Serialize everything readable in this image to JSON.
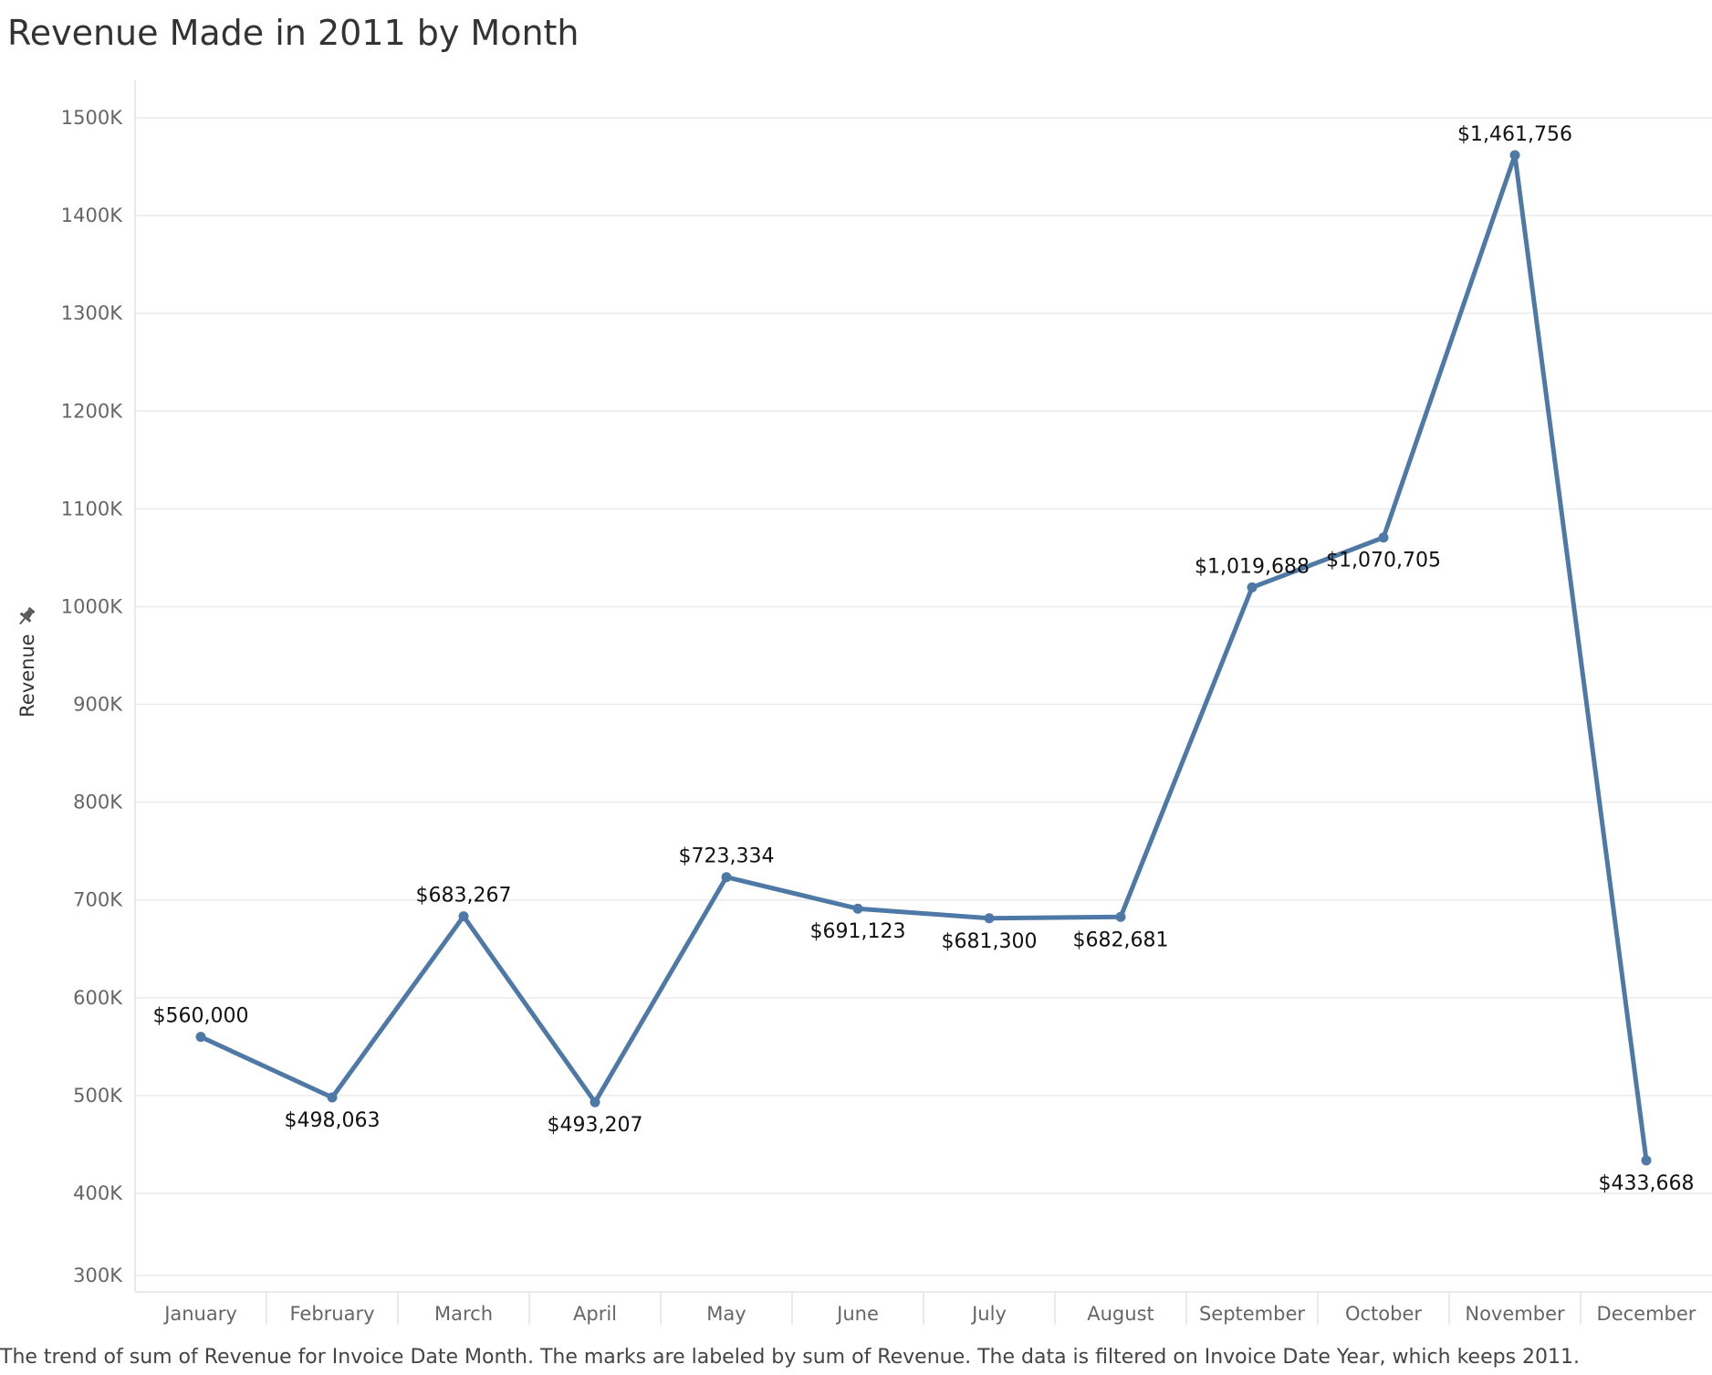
{
  "chart_data": {
    "type": "line",
    "title": "Revenue Made in 2011 by Month",
    "ylabel": "Revenue",
    "xlabel": "",
    "caption": "The trend of sum of Revenue for Invoice Date Month.  The marks are labeled by sum of Revenue. The data is filtered on Invoice Date Year, which keeps 2011.",
    "categories": [
      "January",
      "February",
      "March",
      "April",
      "May",
      "June",
      "July",
      "August",
      "September",
      "October",
      "November",
      "December"
    ],
    "series": [
      {
        "values": [
          560000,
          498063,
          683267,
          493207,
          723334,
          691123,
          681300,
          682681,
          1019688,
          1070705,
          1461756,
          433668
        ],
        "labels": [
          "$560,000",
          "$498,063",
          "$683,267",
          "$493,207",
          "$723,334",
          "$691,123",
          "$681,300",
          "$682,681",
          "$1,019,688",
          "$1,070,705",
          "$1,461,756",
          "$433,668"
        ],
        "label_positions": [
          "above",
          "below",
          "above",
          "below",
          "above",
          "below",
          "below",
          "below",
          "above",
          "below",
          "above",
          "below"
        ]
      }
    ],
    "ylim": [
      300000,
      1500000
    ],
    "yticks": [
      300000,
      400000,
      500000,
      600000,
      700000,
      800000,
      900000,
      1000000,
      1100000,
      1200000,
      1300000,
      1400000,
      1500000
    ],
    "ytick_labels": [
      "300K",
      "400K",
      "500K",
      "600K",
      "700K",
      "800K",
      "900K",
      "1000K",
      "1100K",
      "1200K",
      "1300K",
      "1400K",
      "1500K"
    ],
    "grid": true,
    "legend": "none",
    "line_color": "#4e79a7",
    "grid_color": "#ebebeb"
  },
  "icons": {
    "axis_pin": "pin-icon"
  }
}
